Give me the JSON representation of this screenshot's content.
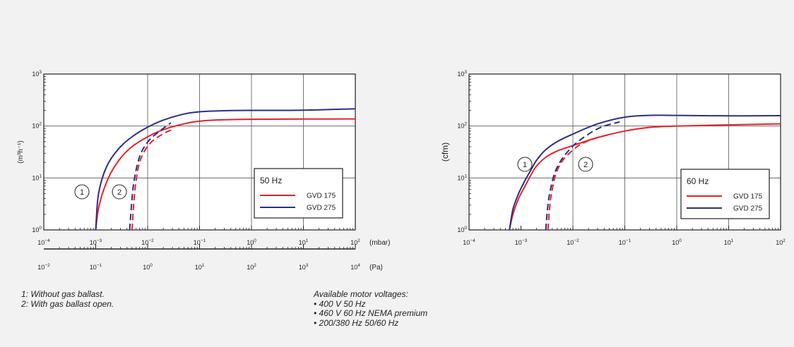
{
  "chart_data": [
    {
      "type": "line",
      "x_scale": "log",
      "y_scale": "log",
      "xlim": [
        0.0001,
        100
      ],
      "ylim": [
        1,
        1000
      ],
      "x_tick_labels": [
        "10-4",
        "10-3",
        "10-2",
        "10-1",
        "100",
        "101",
        "102"
      ],
      "y_tick_labels": [
        "103",
        "102",
        "101",
        "100"
      ],
      "ylabel": "(m³h⁻¹)",
      "xunit": "(mbar)",
      "secondary_axis": {
        "xlim": [
          0.01,
          10000
        ],
        "tick_labels": [
          "10-2",
          "10-1",
          "100",
          "101",
          "102",
          "103",
          "104"
        ],
        "unit": "(Pa)"
      },
      "legend": {
        "title": "50 Hz",
        "placement": "center-right",
        "entries": [
          "GVD 175",
          "GVD 275"
        ]
      },
      "annotations": [
        "1",
        "2"
      ],
      "series": [
        {
          "name": "GVD 175",
          "curve": "1",
          "style": "solid",
          "color": "#e8202a",
          "x": [
            0.001,
            0.0011,
            0.0013,
            0.0016,
            0.002,
            0.003,
            0.005,
            0.01,
            0.02,
            0.05,
            0.1,
            0.3,
            1,
            10,
            100
          ],
          "y": [
            1,
            2.2,
            4.5,
            8,
            13,
            24,
            40,
            62,
            85,
            110,
            124,
            132,
            135,
            136,
            137
          ]
        },
        {
          "name": "GVD 275",
          "curve": "1",
          "style": "solid",
          "color": "#2a2f86",
          "x": [
            0.001,
            0.0011,
            0.0013,
            0.0016,
            0.002,
            0.003,
            0.005,
            0.01,
            0.02,
            0.05,
            0.1,
            0.3,
            1,
            10,
            100
          ],
          "y": [
            1,
            4,
            9,
            16,
            24,
            40,
            62,
            95,
            130,
            170,
            188,
            197,
            200,
            202,
            215
          ]
        },
        {
          "name": "GVD 175",
          "curve": "2",
          "style": "dashed",
          "color": "#e8202a",
          "x": [
            0.005,
            0.0055,
            0.006,
            0.007,
            0.009,
            0.012,
            0.016,
            0.022,
            0.03
          ],
          "y": [
            1,
            4,
            9,
            20,
            35,
            50,
            62,
            75,
            85
          ]
        },
        {
          "name": "GVD 275",
          "curve": "2",
          "style": "dashed",
          "color": "#2a2f86",
          "x": [
            0.0045,
            0.005,
            0.0055,
            0.0065,
            0.008,
            0.011,
            0.015,
            0.02,
            0.028
          ],
          "y": [
            1,
            4,
            9,
            20,
            35,
            55,
            72,
            90,
            115
          ]
        }
      ]
    },
    {
      "type": "line",
      "x_scale": "log",
      "y_scale": "log",
      "xlim": [
        0.0001,
        100
      ],
      "ylim": [
        1,
        1000
      ],
      "x_tick_labels": [
        "10-4",
        "10-3",
        "10-2",
        "10-1",
        "100",
        "101",
        "102"
      ],
      "y_tick_labels": [
        "103",
        "102",
        "101",
        "100"
      ],
      "ylabel": "(cfm)",
      "legend": {
        "title": "60 Hz",
        "placement": "lower-right",
        "entries": [
          "GVD 175",
          "GVD 275"
        ]
      },
      "annotations": [
        "1",
        "2"
      ],
      "series": [
        {
          "name": "GVD 175",
          "curve": "1",
          "style": "solid",
          "color": "#e8202a",
          "x": [
            0.0006,
            0.0007,
            0.0009,
            0.0012,
            0.0016,
            0.002,
            0.003,
            0.005,
            0.01,
            0.03,
            0.1,
            0.3,
            1,
            10,
            100
          ],
          "y": [
            1,
            2,
            4,
            7,
            12,
            17,
            25,
            33,
            42,
            60,
            80,
            94,
            100,
            105,
            110
          ]
        },
        {
          "name": "GVD 275",
          "curve": "1",
          "style": "solid",
          "color": "#2a2f86",
          "x": [
            0.0006,
            0.0007,
            0.0009,
            0.0012,
            0.0016,
            0.002,
            0.003,
            0.005,
            0.01,
            0.03,
            0.1,
            0.3,
            1,
            10,
            100
          ],
          "y": [
            1,
            2.5,
            5,
            9,
            15,
            22,
            35,
            50,
            70,
            110,
            148,
            160,
            160,
            157,
            158
          ]
        },
        {
          "name": "GVD 175",
          "curve": "2",
          "style": "dashed",
          "color": "#e8202a",
          "x": [
            0.0033,
            0.0036,
            0.004,
            0.0047,
            0.006,
            0.008,
            0.012,
            0.018,
            0.03,
            0.05
          ],
          "y": [
            1,
            3,
            6,
            12,
            20,
            28,
            40,
            50,
            60,
            68
          ]
        },
        {
          "name": "GVD 275",
          "curve": "2",
          "style": "dashed",
          "color": "#2a2f86",
          "x": [
            0.003,
            0.0033,
            0.0037,
            0.0044,
            0.0056,
            0.0075,
            0.011,
            0.016,
            0.025,
            0.04,
            0.08
          ],
          "y": [
            1,
            3,
            6,
            12,
            20,
            30,
            45,
            60,
            80,
            100,
            120
          ]
        }
      ]
    }
  ],
  "notes": {
    "left": [
      "1: Without gas ballast.",
      "2: With gas ballast open."
    ],
    "right": [
      "Available motor voltages:",
      "• 400 V 50 Hz",
      "• 460 V 60 Hz NEMA premium",
      "• 200/380 Hz 50/60 Hz"
    ]
  }
}
